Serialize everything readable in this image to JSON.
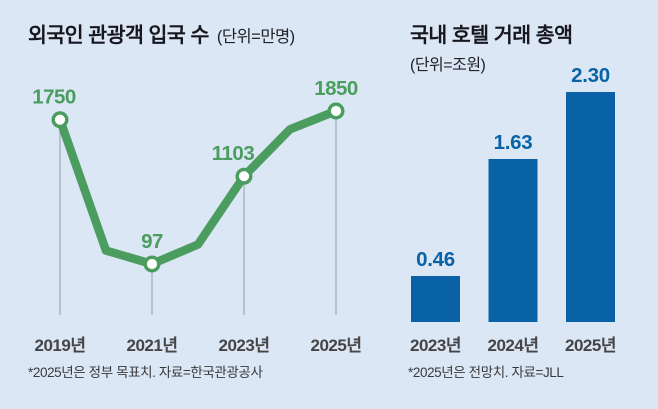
{
  "page": {
    "background_color": "#dbe7f4",
    "title_color": "#17171f"
  },
  "chart_data": [
    {
      "type": "line",
      "title": "외국인 관광객 입국 수",
      "unit_label": "(단위=만명)",
      "x_years": [
        2019,
        2020,
        2021,
        2022,
        2023,
        2024,
        2025
      ],
      "values": [
        1750,
        250,
        97,
        320,
        1103,
        1640,
        1850
      ],
      "labeled_points": [
        {
          "year": 2019,
          "tick_label": "2019년",
          "value": 1750,
          "value_label": "1750"
        },
        {
          "year": 2021,
          "tick_label": "2021년",
          "value": 97,
          "value_label": "97"
        },
        {
          "year": 2023,
          "tick_label": "2023년",
          "value": 1103,
          "value_label": "1103"
        },
        {
          "year": 2025,
          "tick_label": "2025년",
          "value": 1850,
          "value_label": "1850"
        }
      ],
      "unlabeled_intermediate_values_estimated": {
        "2020": 250,
        "2022": 320,
        "2024": 1640
      },
      "footnote": "*2025년은 정부 목표치. 자료=한국관광공사",
      "line_color": "#4a9d5f",
      "marker_style": "white circle with green stroke",
      "gridline_color": "#a9adb2",
      "gridlines": "vertical drop lines at labeled years only",
      "ylim": [
        0,
        2000
      ],
      "legend": "none"
    },
    {
      "type": "bar",
      "title": "국내 호텔 거래 총액",
      "unit_label": "(단위=조원)",
      "categories": [
        "2023년",
        "2024년",
        "2025년"
      ],
      "values": [
        0.46,
        1.63,
        2.3
      ],
      "value_labels": [
        "0.46",
        "1.63",
        "2.30"
      ],
      "footnote": "*2025년은 전망치. 자료=JLL",
      "bar_color": "#0a62a6",
      "ylim": [
        0,
        2.5
      ],
      "legend": "none"
    }
  ]
}
